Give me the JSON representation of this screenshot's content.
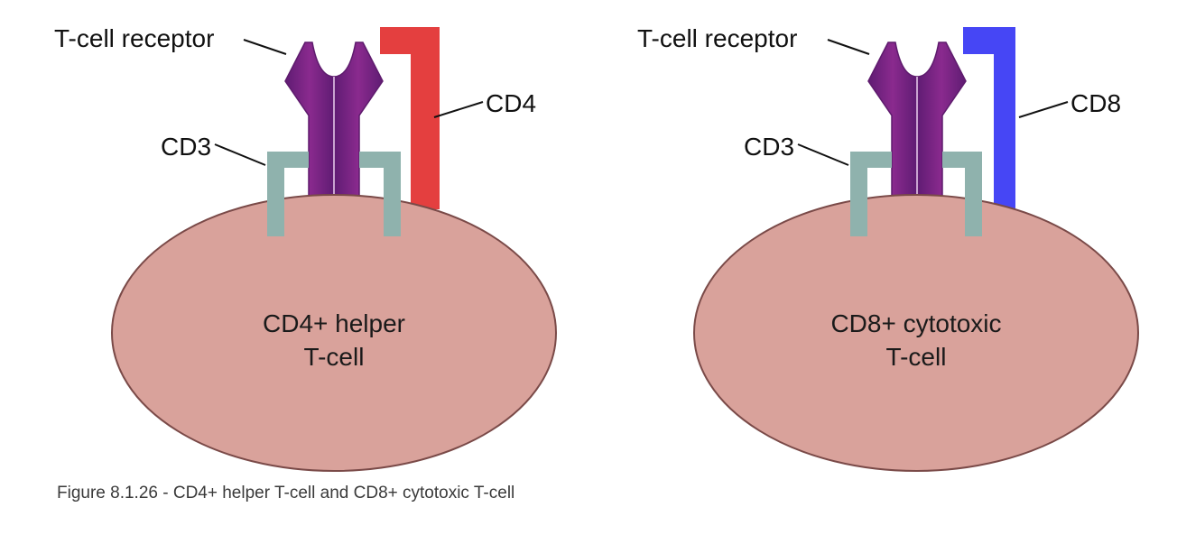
{
  "colors": {
    "cell_fill": "#d9a29b",
    "cell_stroke": "#7a4a48",
    "receptor_fill": "#7a2285",
    "receptor_edge": "#5e1b6d",
    "cd3_color": "#8fb2ad",
    "cd4_color": "#e43f3f",
    "cd8_color": "#4646f5"
  },
  "left_cell": {
    "receptor_label": "T-cell receptor",
    "cd3_label": "CD3",
    "coreceptor_label": "CD4",
    "cell_line1": "CD4+ helper",
    "cell_line2": "T-cell"
  },
  "right_cell": {
    "receptor_label": "T-cell receptor",
    "cd3_label": "CD3",
    "coreceptor_label": "CD8",
    "cell_line1": "CD8+ cytotoxic",
    "cell_line2": "T-cell"
  },
  "caption": "Figure 8.1.26 - CD4+ helper T-cell and CD8+ cytotoxic T-cell"
}
